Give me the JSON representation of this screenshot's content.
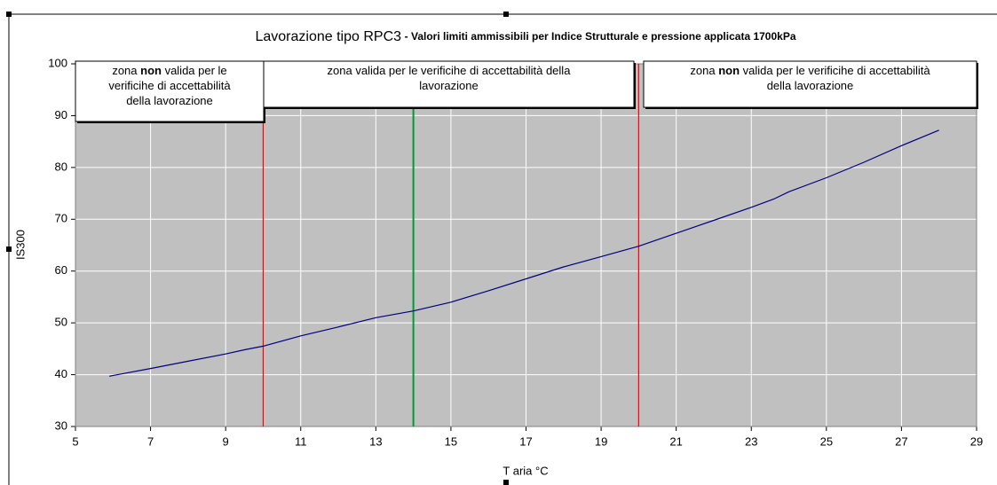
{
  "chart_data": {
    "type": "line",
    "title": "Lavorazione tipo RPC3",
    "subtitle": "- Valori limiti ammissibili per Indice Strutturale e pressione applicata 1700kPa",
    "xlabel": "T aria °C",
    "ylabel": "IS300",
    "xlim": [
      5,
      29
    ],
    "ylim": [
      30,
      100
    ],
    "xticks": [
      5,
      7,
      9,
      11,
      13,
      15,
      17,
      19,
      21,
      23,
      25,
      27,
      29
    ],
    "yticks": [
      30,
      40,
      50,
      60,
      70,
      80,
      90,
      100
    ],
    "grid": true,
    "background": "#c0c0c0",
    "series": [
      {
        "color": "#000080",
        "x": [
          5.9,
          7,
          8,
          9,
          9.5,
          10,
          11,
          12,
          13,
          14,
          15,
          16,
          17,
          18,
          19,
          20,
          21,
          22,
          23,
          23.6,
          24,
          25,
          26,
          27,
          28
        ],
        "values": [
          39.7,
          41.2,
          42.6,
          44,
          44.8,
          45.5,
          47.5,
          49.2,
          51,
          52.3,
          54,
          56.2,
          58.5,
          60.8,
          62.8,
          64.8,
          67.3,
          69.8,
          72.3,
          73.9,
          75.3,
          78,
          81,
          84.2,
          87.2
        ]
      }
    ],
    "reference_lines": [
      {
        "x": 10,
        "color": "#ff0000"
      },
      {
        "x": 14,
        "color": "#009933"
      },
      {
        "x": 20,
        "color": "#ff0000"
      }
    ],
    "annotations": [
      {
        "lines": [
          [
            {
              "text": "zona "
            },
            {
              "text": "non",
              "bold": true
            },
            {
              "text": " valida per le"
            }
          ],
          [
            {
              "text": "verificihe di accettabilità"
            }
          ],
          [
            {
              "text": "della lavorazione"
            }
          ]
        ]
      },
      {
        "lines": [
          [
            {
              "text": "zona valida per le verificihe di accettabilità della"
            }
          ],
          [
            {
              "text": "lavorazione"
            }
          ]
        ]
      },
      {
        "lines": [
          [
            {
              "text": "zona "
            },
            {
              "text": "non",
              "bold": true
            },
            {
              "text": " valida per le verificihe di accettabilità"
            }
          ],
          [
            {
              "text": "della lavorazione"
            }
          ]
        ]
      }
    ]
  }
}
